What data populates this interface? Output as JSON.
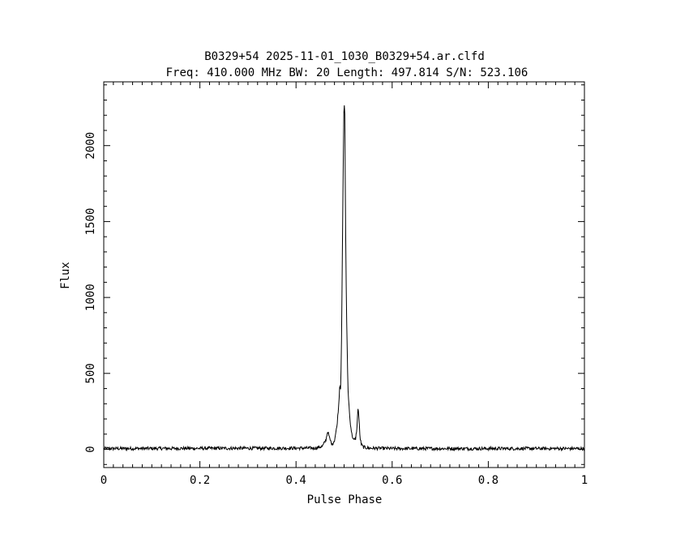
{
  "chart_data": {
    "type": "line",
    "title": "B0329+54 2025-11-01_1030_B0329+54.ar.clfd",
    "subtitle": "Freq: 410.000 MHz BW: 20 Length: 497.814 S/N: 523.106",
    "xlabel": "Pulse Phase",
    "ylabel": "Flux",
    "xlim": [
      0,
      1
    ],
    "ylim": [
      -120,
      2420
    ],
    "xticks": [
      0,
      0.2,
      0.4,
      0.6,
      0.8,
      1
    ],
    "xtick_labels": [
      "0",
      "0.2",
      "0.4",
      "0.6",
      "0.8",
      "1"
    ],
    "yticks": [
      0,
      500,
      1000,
      1500,
      2000
    ],
    "ytick_labels": [
      "0",
      "500",
      "1000",
      "1500",
      "2000"
    ],
    "grid": false,
    "line_color": "#000000",
    "series": [
      {
        "x": [
          0.0,
          0.44,
          0.455,
          0.462,
          0.466,
          0.47,
          0.475,
          0.48,
          0.485,
          0.489,
          0.491,
          0.493,
          0.495,
          0.497,
          0.499,
          0.5,
          0.5015,
          0.503,
          0.505,
          0.508,
          0.512,
          0.516,
          0.52,
          0.524,
          0.527,
          0.529,
          0.531,
          0.533,
          0.536,
          0.54,
          0.55,
          0.6,
          1.0
        ],
        "y": [
          5,
          8,
          20,
          60,
          120,
          70,
          30,
          60,
          150,
          300,
          430,
          400,
          800,
          1500,
          2100,
          2310,
          2200,
          1500,
          900,
          400,
          200,
          100,
          60,
          70,
          150,
          285,
          200,
          80,
          30,
          15,
          8,
          5,
          5
        ]
      }
    ]
  }
}
